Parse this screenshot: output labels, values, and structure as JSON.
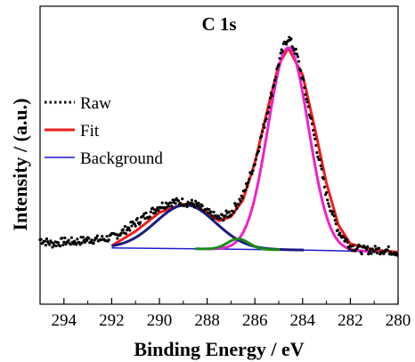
{
  "chart_data": {
    "type": "line",
    "title": "C 1s",
    "xlabel": "Binding Energy / eV",
    "ylabel": "Intensity / (a.u.)",
    "xlim": [
      295,
      280
    ],
    "ylim": [
      -0.25,
      1.18
    ],
    "x_reversed": true,
    "x_ticks": [
      294,
      292,
      290,
      288,
      286,
      284,
      282,
      280
    ],
    "y_ticks_shown": false,
    "grid": false,
    "legend_position": "left",
    "legend": [
      {
        "label": "Raw",
        "color": "#000000",
        "style": "dotted"
      },
      {
        "label": "Fit",
        "color": "#ee1c1c",
        "style": "solid"
      },
      {
        "label": "Background",
        "color": "#1c1ccc",
        "style": "solid"
      }
    ],
    "raw": {
      "x": [
        295.0,
        294.5,
        294.0,
        293.5,
        293.0,
        292.5,
        292.0,
        291.5,
        291.0,
        290.5,
        290.0,
        289.5,
        289.0,
        288.5,
        288.0,
        287.5,
        287.0,
        286.5,
        286.0,
        285.5,
        285.0,
        284.75,
        284.6,
        284.5,
        284.25,
        284.0,
        283.5,
        283.0,
        282.5,
        282.0,
        281.5,
        281.0,
        280.5,
        280.0
      ],
      "y": [
        0.06,
        0.04,
        0.05,
        0.05,
        0.06,
        0.06,
        0.07,
        0.1,
        0.14,
        0.18,
        0.22,
        0.24,
        0.24,
        0.23,
        0.19,
        0.16,
        0.19,
        0.27,
        0.43,
        0.66,
        0.91,
        1.0,
        1.03,
        1.01,
        0.95,
        0.83,
        0.55,
        0.27,
        0.1,
        0.03,
        0.01,
        0.01,
        0.01,
        0.0
      ]
    },
    "fit": {
      "color": "#ee1c1c",
      "x": [
        292.0,
        291.0,
        290.0,
        289.0,
        288.5,
        288.0,
        287.5,
        287.0,
        286.5,
        286.0,
        285.5,
        285.0,
        284.6,
        284.0,
        283.5,
        283.0,
        282.5,
        282.0,
        281.0,
        280.0
      ],
      "y": [
        0.03,
        0.1,
        0.19,
        0.23,
        0.22,
        0.19,
        0.15,
        0.17,
        0.25,
        0.43,
        0.67,
        0.9,
        0.98,
        0.85,
        0.6,
        0.33,
        0.13,
        0.04,
        0.01,
        0.0
      ]
    },
    "background": {
      "color": "#1c1ccc",
      "x": [
        292.0,
        288.0,
        284.0,
        280.0
      ],
      "y": [
        0.02,
        0.015,
        0.01,
        0.0
      ]
    },
    "components": [
      {
        "color": "#ee22cc",
        "center": 284.6,
        "sigma": 0.85,
        "amplitude": 0.97
      },
      {
        "color": "#1a1a80",
        "center": 288.9,
        "sigma": 1.25,
        "amplitude": 0.21
      },
      {
        "color": "#1a8a1a",
        "center": 286.7,
        "sigma": 0.45,
        "amplitude": 0.05
      }
    ]
  }
}
